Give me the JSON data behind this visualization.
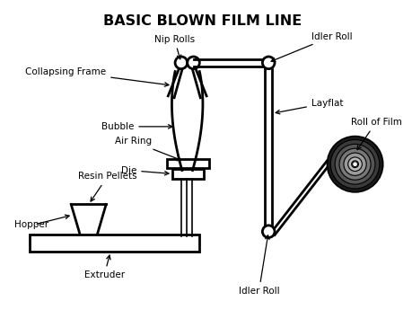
{
  "title": "BASIC BLOWN FILM LINE",
  "bg_color": "#ffffff",
  "line_color": "#000000",
  "title_fontsize": 11.5,
  "label_fontsize": 7.5,
  "labels": {
    "nip_rolls": "Nip Rolls",
    "idler_roll_top": "Idler Roll",
    "collapsing_frame": "Collapsing Frame",
    "layflat": "Layflat",
    "bubble": "Bubble",
    "roll_of_film": "Roll of Film",
    "resin_pellets": "Resin Pellets",
    "air_ring": "Air Ring",
    "die": "Die",
    "hopper": "Hopper",
    "extruder": "Extruder",
    "idler_roll_bottom": "Idler Roll"
  }
}
